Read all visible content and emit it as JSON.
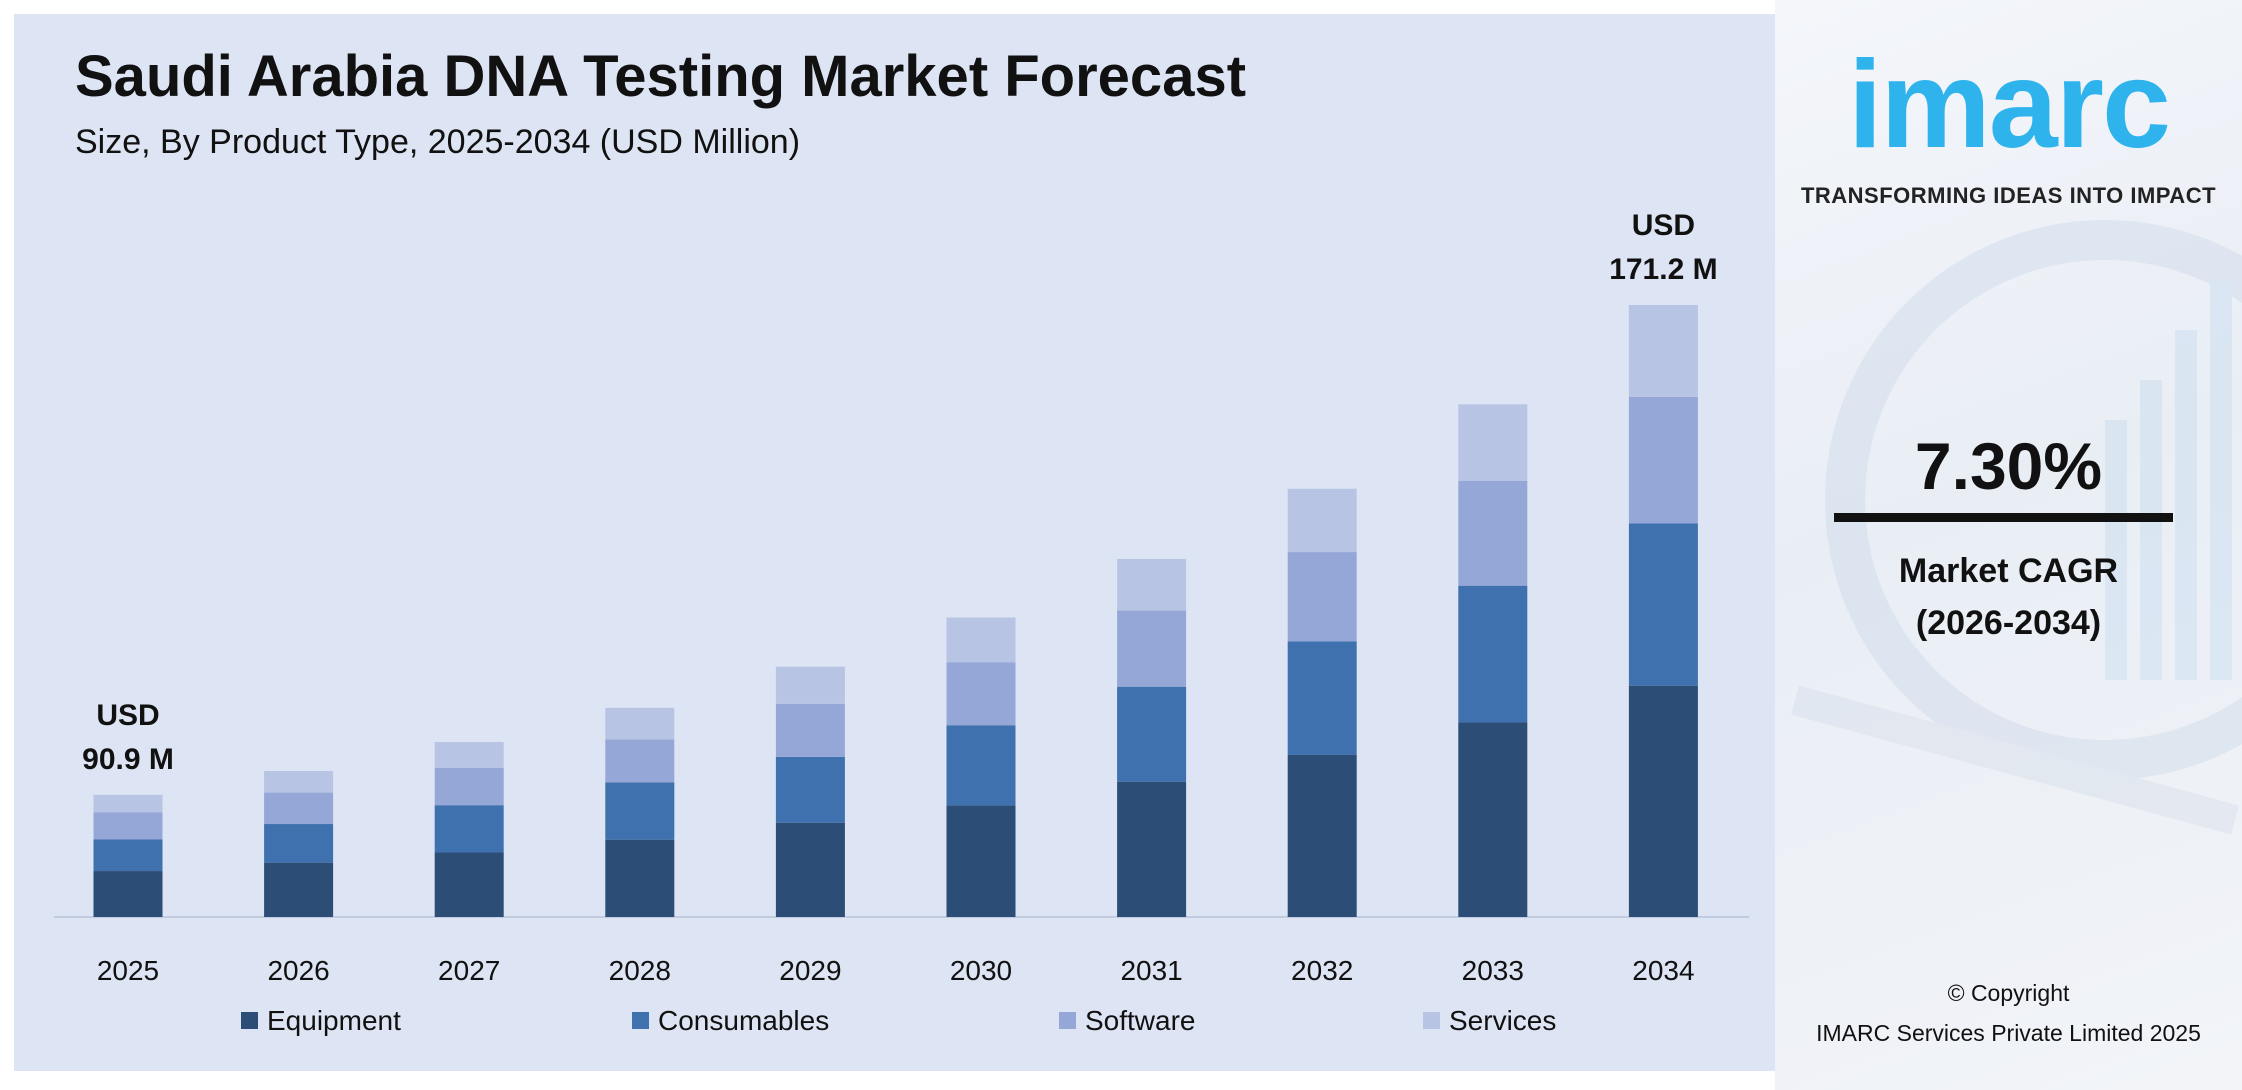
{
  "title": "Saudi Arabia DNA Testing Market Forecast",
  "subtitle": "Size, By Product Type, 2025-2034 (USD Million)",
  "chart_data": {
    "type": "bar",
    "stacked": true,
    "categories": [
      "2025",
      "2026",
      "2027",
      "2028",
      "2029",
      "2030",
      "2031",
      "2032",
      "2033",
      "2034"
    ],
    "series": [
      {
        "name": "Equipment",
        "color": "#2c4d76",
        "values": [
          34.2,
          36.3,
          38.6,
          41.5,
          45.4,
          48.2,
          52.4,
          56.4,
          60.6,
          64.7
        ]
      },
      {
        "name": "Consumables",
        "color": "#3e71ad",
        "values": [
          23.5,
          25.8,
          28.3,
          30.8,
          31.7,
          34.6,
          36.8,
          39.4,
          42.6,
          45.4
        ]
      },
      {
        "name": "Software",
        "color": "#95a7d7",
        "values": [
          20.3,
          21.0,
          22.3,
          23.1,
          25.5,
          27.2,
          29.5,
          31.0,
          32.7,
          35.4
        ]
      },
      {
        "name": "Services",
        "color": "#b8c4e3",
        "values": [
          12.9,
          14.4,
          15.5,
          16.9,
          17.9,
          19.3,
          20.0,
          22.0,
          23.8,
          25.7
        ]
      }
    ],
    "annotations": [
      {
        "category": "2025",
        "line1": "USD",
        "line2": "90.9 M"
      },
      {
        "category": "2034",
        "line1": "USD",
        "line2": "171.2 M"
      }
    ],
    "legend_position": "bottom",
    "grid": false,
    "xlabel": "",
    "ylabel": ""
  },
  "brand": {
    "logo_text": "imarc",
    "tagline": "TRANSFORMING IDEAS INTO IMPACT",
    "color": "#2fb3ec"
  },
  "cagr": {
    "value": "7.30%",
    "label": "Market CAGR",
    "period": "(2026-2034)"
  },
  "copyright": {
    "line1": "© Copyright",
    "line2": "IMARC Services Private Limited 2025"
  }
}
